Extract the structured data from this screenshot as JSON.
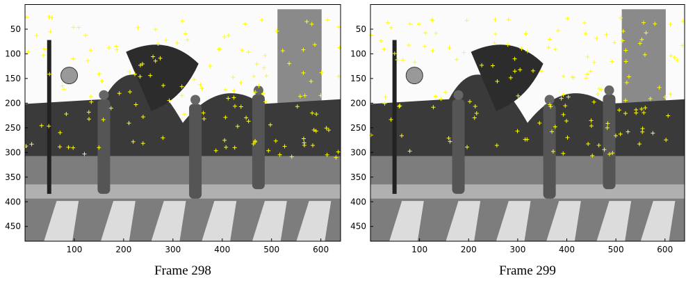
{
  "panels": [
    {
      "caption": "Frame 298",
      "xlim": [
        0,
        640
      ],
      "ylim": [
        0,
        480
      ],
      "xticks": [
        100,
        200,
        300,
        400,
        500,
        600
      ],
      "yticks": [
        50,
        100,
        150,
        200,
        250,
        300,
        350,
        400,
        450
      ]
    },
    {
      "caption": "Frame 299",
      "xlim": [
        0,
        640
      ],
      "ylim": [
        0,
        480
      ],
      "xticks": [
        100,
        200,
        300,
        400,
        500,
        600
      ],
      "yticks": [
        50,
        100,
        150,
        200,
        250,
        300,
        350,
        400,
        450
      ]
    }
  ]
}
